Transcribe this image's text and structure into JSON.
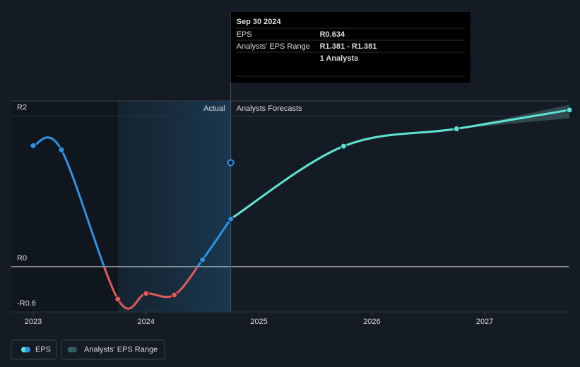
{
  "chart_data": {
    "type": "line",
    "currency_note": null,
    "xlim": [
      2022.806,
      2027.744
    ],
    "xticks": [
      2023,
      2024,
      2025,
      2026,
      2027
    ],
    "ylim": [
      -0.6,
      2.2
    ],
    "yticks": [
      {
        "value": -0.6,
        "label": "-R0.6"
      },
      {
        "value": 0,
        "label": "R0"
      },
      {
        "value": 2,
        "label": "R2"
      }
    ],
    "region_labels": {
      "actual": "Actual",
      "forecast": "Analysts Forecasts"
    },
    "series": [
      {
        "name": "EPS",
        "color": "#2e93e6",
        "negative_color": "#e05a5a",
        "x": [
          2023.0,
          2023.25,
          2023.75,
          2024.0,
          2024.25,
          2024.5,
          2024.75
        ],
        "values": [
          1.607,
          1.551,
          -0.43,
          -0.355,
          -0.374,
          0.093,
          0.634
        ]
      },
      {
        "name": "Analysts' EPS Range",
        "color": "#5de3d3",
        "band_color": "#3a5a5f",
        "x": [
          2024.75,
          2025.75,
          2026.75,
          2027.75
        ],
        "values": [
          0.634,
          1.6,
          1.83,
          2.08
        ],
        "low": [
          0.634,
          1.58,
          1.82,
          1.97
        ],
        "high": [
          0.634,
          1.61,
          1.84,
          2.15
        ]
      }
    ],
    "analyst_estimate": {
      "x": 2024.75,
      "value": 1.381,
      "color": "#2e93e6"
    },
    "tooltip": {
      "date": "Sep 30 2024",
      "eps_label": "EPS",
      "eps_value": "R0.634",
      "range_label": "Analysts' EPS Range",
      "range_value": "R1.381 - R1.381",
      "analysts": "1 Analysts"
    }
  }
}
